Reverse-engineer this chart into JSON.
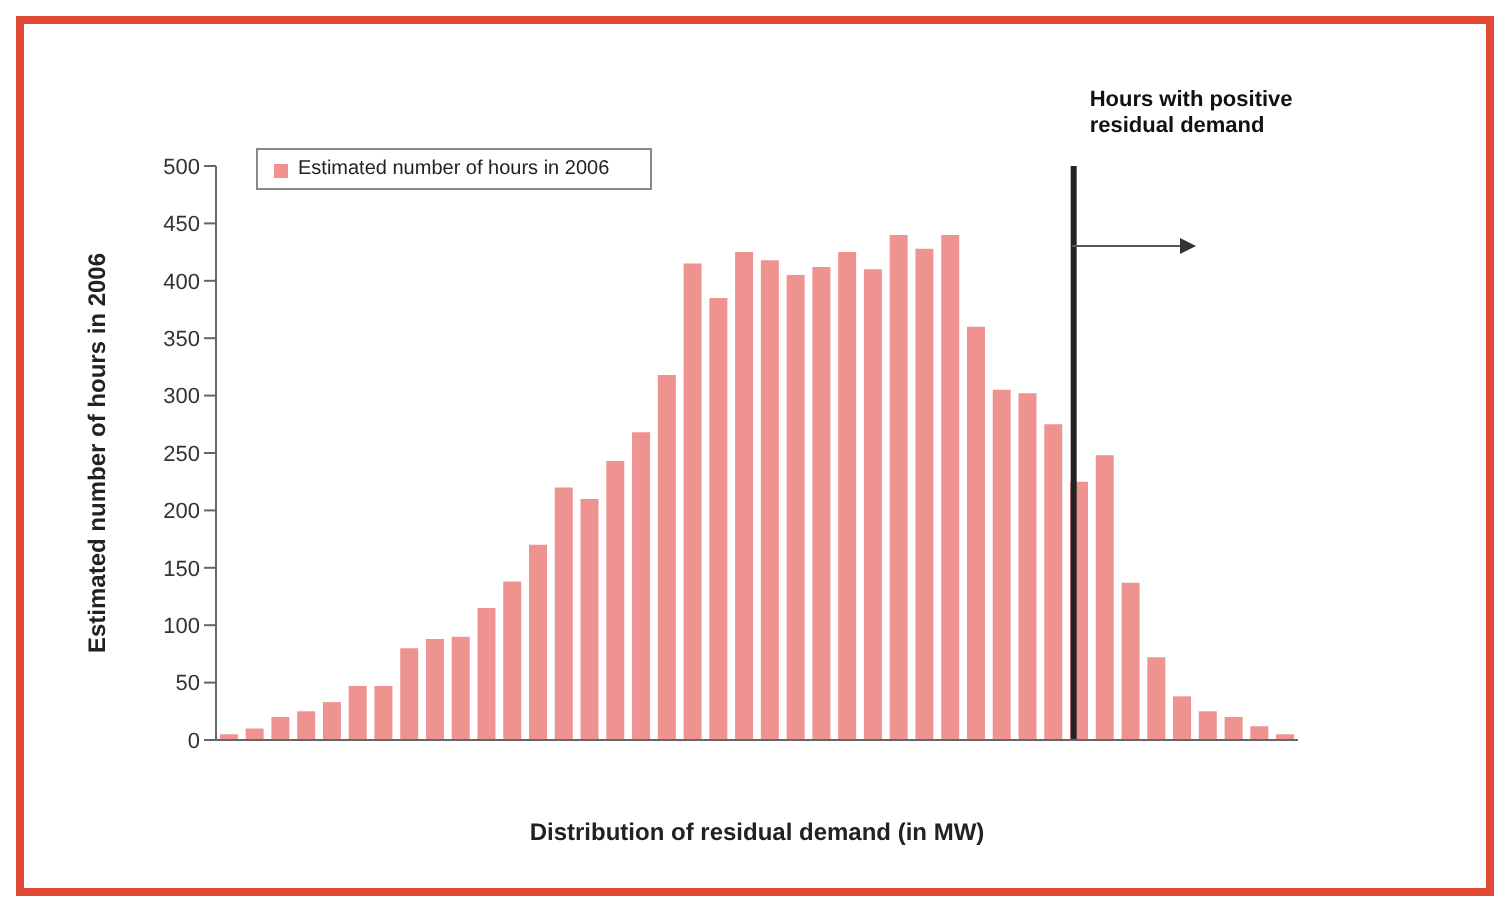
{
  "chart_data": {
    "type": "bar",
    "xlabel": "Distribution of residual demand (in MW)",
    "ylabel": "Estimated number of hours in 2006",
    "categories": [
      null,
      null,
      null,
      null,
      null,
      null,
      null,
      null,
      null,
      null,
      null,
      null,
      null,
      null,
      null,
      null,
      null,
      null,
      null,
      null,
      null,
      null,
      null,
      null,
      null,
      null,
      null,
      null,
      null,
      null,
      null,
      null,
      null,
      null,
      null,
      null,
      null,
      null,
      null,
      null,
      null,
      null
    ],
    "series": [
      {
        "name": "Estimated number of hours in 2006",
        "color": "#ef9390",
        "values": [
          5,
          10,
          20,
          25,
          33,
          47,
          47,
          80,
          88,
          90,
          115,
          138,
          170,
          220,
          210,
          243,
          268,
          318,
          415,
          385,
          425,
          418,
          405,
          412,
          425,
          410,
          440,
          428,
          440,
          360,
          305,
          302,
          275,
          225,
          248,
          137,
          72,
          38,
          25,
          20,
          12,
          5
        ]
      }
    ],
    "ylim": [
      0,
      500
    ],
    "yticks": [
      0,
      50,
      100,
      150,
      200,
      250,
      300,
      350,
      400,
      450,
      500
    ],
    "grid": false,
    "legend": "top left",
    "annotations": [
      "Hours with positive residual demand"
    ]
  }
}
